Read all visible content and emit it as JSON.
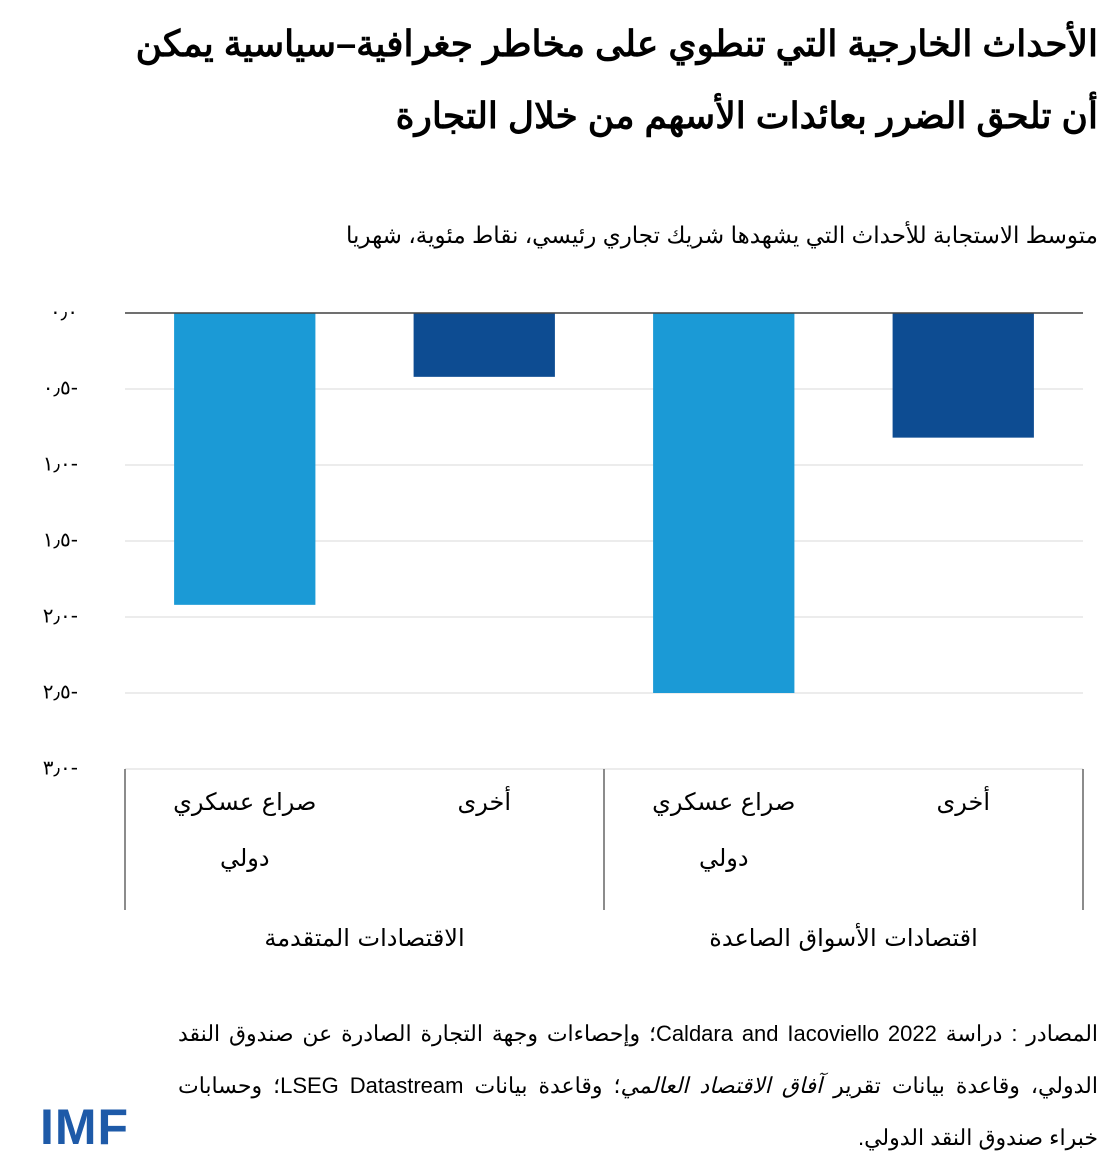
{
  "chart_data": {
    "type": "bar",
    "title": "الأحداث الخارجية التي تنطوي على مخاطر جغرافية–سياسية يمكن أن تلحق الضرر بعائدات الأسهم من خلال التجارة",
    "subtitle": "متوسط الاستجابة للأحداث التي يشهدها شريك تجاري رئيسي، نقاط مئوية، شهريا",
    "categories": [
      "صراع عسكري دولي",
      "أخرى",
      "صراع عسكري دولي",
      "أخرى"
    ],
    "groups": [
      {
        "label": "الاقتصادات المتقدمة",
        "size": 2
      },
      {
        "label": "اقتصادات الأسواق الصاعدة",
        "size": 2
      }
    ],
    "values": [
      -1.92,
      -0.42,
      -2.5,
      -0.82
    ],
    "colors": [
      "#1b9ad6",
      "#0d4c92",
      "#1b9ad6",
      "#0d4c92"
    ],
    "ylim": [
      -3,
      0
    ],
    "yticks": [
      {
        "value": 0,
        "label": "٠٫٠"
      },
      {
        "value": -0.5,
        "label": "٠٫٥-"
      },
      {
        "value": -1,
        "label": "١٫٠-"
      },
      {
        "value": -1.5,
        "label": "١٫٥-"
      },
      {
        "value": -2,
        "label": "٢٫٠-"
      },
      {
        "value": -2.5,
        "label": "٢٫٥-"
      },
      {
        "value": -3,
        "label": "٣٫٠-"
      }
    ],
    "grid": true
  },
  "source": {
    "before": "المصادر : دراسة Caldara and Iacoviello 2022؛ وإحصاءات وجهة التجارة الصادرة عن صندوق النقد الدولي، وقاعدة بيانات تقرير ",
    "italic": "آفاق الاقتصاد العالمي",
    "after": "؛ وقاعدة بيانات LSEG Datastream؛ وحسابات خبراء صندوق النقد الدولي."
  },
  "logo": "IMF"
}
